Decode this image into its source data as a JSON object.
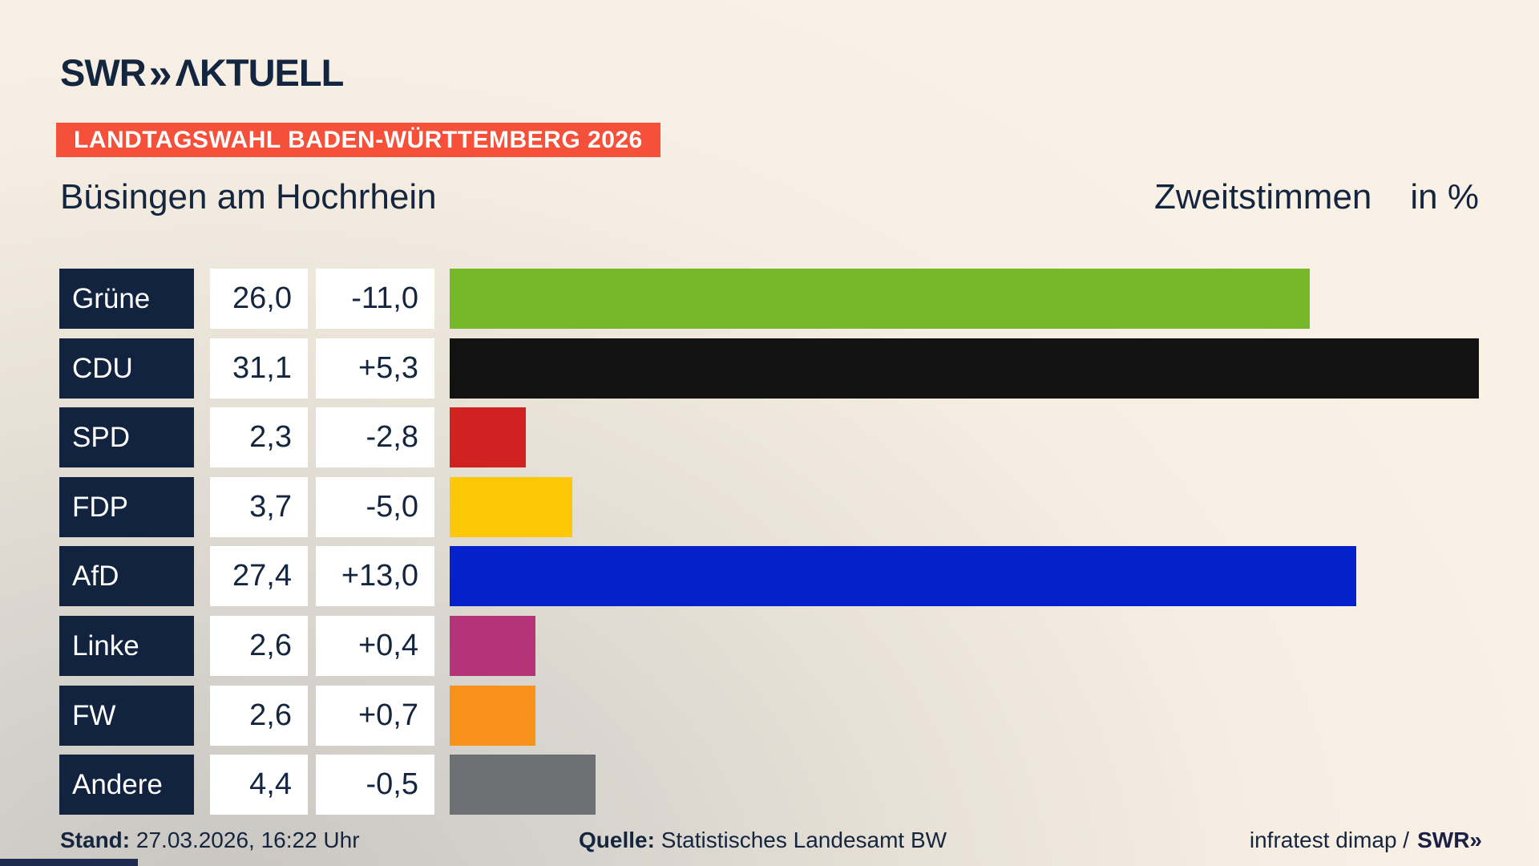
{
  "header": {
    "logo_swr": "SWR",
    "logo_chevrons": "»",
    "logo_aktuell": "ΛKTUELL"
  },
  "banner": {
    "text": "LANDTAGSWAHL BADEN-WÜRTTEMBERG 2026",
    "bg_color": "#f4503a"
  },
  "titlebar": {
    "region": "Büsingen am Hochrhein",
    "measure": "Zweitstimmen",
    "unit": "in %"
  },
  "chart_data": {
    "type": "bar",
    "orientation": "horizontal",
    "title": "Büsingen am Hochrhein",
    "subtitle": "Zweitstimmen in %",
    "categories": [
      "Grüne",
      "CDU",
      "SPD",
      "FDP",
      "AfD",
      "Linke",
      "FW",
      "Andere"
    ],
    "values": [
      26.0,
      31.1,
      2.3,
      3.7,
      27.4,
      2.6,
      2.6,
      4.4
    ],
    "value_labels": [
      "26,0",
      "31,1",
      "2,3",
      "3,7",
      "27,4",
      "2,6",
      "2,6",
      "4,4"
    ],
    "change_labels": [
      "-11,0",
      "+5,3",
      "-2,8",
      "-5,0",
      "+13,0",
      "+0,4",
      "+0,7",
      "-0,5"
    ],
    "bar_colors": [
      "#76b82a",
      "#121212",
      "#d02221",
      "#fdc807",
      "#0421cc",
      "#b53378",
      "#f8921a",
      "#6e7173"
    ],
    "scale_max": 31.1,
    "xlim": [
      0,
      31.1
    ],
    "grid": false,
    "legend": false,
    "label_box_color": "#11233f",
    "value_box_color": "#ffffff"
  },
  "footer": {
    "stand_label": "Stand:",
    "stand_value": "27.03.2026, 16:22 Uhr",
    "quelle_label": "Quelle:",
    "quelle_value": "Statistisches Landesamt BW",
    "credit_text": "infratest dimap /",
    "credit_logo_swr": "SWR",
    "credit_logo_chevrons": "»"
  }
}
